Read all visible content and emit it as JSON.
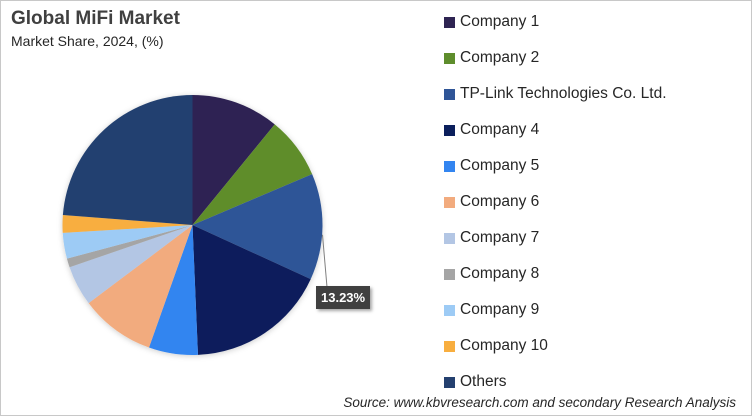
{
  "chart_data": {
    "type": "pie",
    "title": "Global MiFi Market",
    "subtitle": "Market Share, 2024, (%)",
    "categories": [
      "Company 1",
      "Company 2",
      "TP-Link Technologies Co. Ltd.",
      "Company 4",
      "Company 5",
      "Company 6",
      "Company 7",
      "Company 8",
      "Company 9",
      "Company 10",
      "Others"
    ],
    "values": [
      10.9,
      7.7,
      13.23,
      17.5,
      6.1,
      9.3,
      5.0,
      1.1,
      3.2,
      2.2,
      23.77
    ],
    "colors": [
      "#2e2452",
      "#5e8d2c",
      "#2f5597",
      "#0b1f5c",
      "#3385f0",
      "#f2ab7e",
      "#b3c6e4",
      "#a5a5a5",
      "#9dcbf5",
      "#f8ae3f",
      "#24406f"
    ],
    "data_labels": [
      {
        "category": "TP-Link Technologies Co. Ltd.",
        "text": "13.23%"
      }
    ],
    "legend": "right"
  },
  "source": "Source: www.kbvresearch.com and secondary Research Analysis"
}
